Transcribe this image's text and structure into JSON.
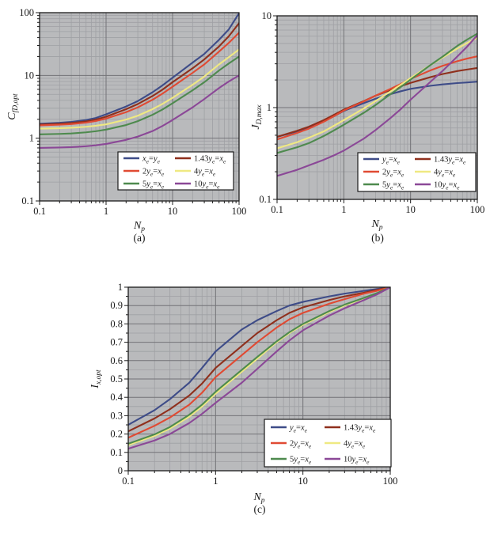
{
  "figure": {
    "background": "#ffffff",
    "plot_background": "#b9babc",
    "grid_major_color": "#737377",
    "grid_minor_color": "#9fa0a4",
    "frame_color": "#1c1c1c",
    "text_color": "#1a1a1a"
  },
  "chart_data": [
    {
      "id": "a",
      "type": "line",
      "caption": "(a)",
      "xlabel": {
        "base": "N",
        "sub": "p"
      },
      "ylabel": {
        "base": "C",
        "sub": "fD,opt"
      },
      "xscale": "log",
      "yscale": "log",
      "xlim": [
        0.1,
        100
      ],
      "ylim": [
        0.1,
        100
      ],
      "xtick_values": [
        0.1,
        1,
        10,
        100
      ],
      "xtick_labels": [
        "0.1",
        "1",
        "10",
        "100"
      ],
      "ytick_values": [
        0.1,
        1,
        10,
        100
      ],
      "ytick_labels": [
        "0.1",
        "1",
        "10",
        "100"
      ],
      "grid": true,
      "legend_position": "lower right",
      "x": [
        0.1,
        0.2,
        0.3,
        0.5,
        0.7,
        1,
        2,
        3,
        5,
        7,
        10,
        20,
        30,
        50,
        70,
        100
      ],
      "series": [
        {
          "name": "x_e=y_e",
          "color": "#3e4c88",
          "values": [
            1.7,
            1.76,
            1.82,
            1.95,
            2.1,
            2.4,
            3.2,
            3.9,
            5.4,
            6.9,
            9.2,
            16.0,
            22.0,
            37.0,
            54.0,
            98.0
          ]
        },
        {
          "name": "1.43y_e=x_e",
          "color": "#8f301d",
          "values": [
            1.65,
            1.7,
            1.75,
            1.85,
            1.98,
            2.2,
            2.9,
            3.5,
            4.7,
            5.9,
            7.8,
            13.0,
            18.0,
            29.0,
            42.0,
            68.0
          ]
        },
        {
          "name": "2y_e=x_e",
          "color": "#e04a33",
          "values": [
            1.6,
            1.64,
            1.68,
            1.77,
            1.88,
            2.05,
            2.6,
            3.1,
            4.1,
            5.1,
            6.6,
            11.0,
            15.0,
            24.0,
            33.0,
            48.0
          ]
        },
        {
          "name": "4y_e=x_e",
          "color": "#efe982",
          "values": [
            1.42,
            1.44,
            1.47,
            1.52,
            1.58,
            1.66,
            1.98,
            2.28,
            2.9,
            3.5,
            4.4,
            7.1,
            9.6,
            15.0,
            19.5,
            26.0
          ]
        },
        {
          "name": "5y_e=x_e",
          "color": "#4e8a4e",
          "values": [
            1.15,
            1.17,
            1.19,
            1.24,
            1.29,
            1.37,
            1.62,
            1.87,
            2.36,
            2.85,
            3.6,
            5.8,
            7.8,
            12.0,
            15.5,
            20.0
          ]
        },
        {
          "name": "10y_e=x_e",
          "color": "#8b4897",
          "values": [
            0.7,
            0.71,
            0.72,
            0.745,
            0.77,
            0.81,
            0.94,
            1.06,
            1.3,
            1.56,
            1.95,
            3.1,
            4.2,
            6.3,
            8.0,
            10.0
          ]
        }
      ]
    },
    {
      "id": "b",
      "type": "line",
      "caption": "(b)",
      "xlabel": {
        "base": "N",
        "sub": "p"
      },
      "ylabel": {
        "base": "J",
        "sub": "D,max"
      },
      "xscale": "log",
      "yscale": "log",
      "xlim": [
        0.1,
        100
      ],
      "ylim": [
        0.1,
        10
      ],
      "xtick_values": [
        0.1,
        1,
        10,
        100
      ],
      "xtick_labels": [
        "0.1",
        "1",
        "10",
        "100"
      ],
      "ytick_values": [
        0.1,
        1,
        10
      ],
      "ytick_labels": [
        "0.1",
        "1",
        "10"
      ],
      "grid": true,
      "legend_position": "lower right",
      "x": [
        0.1,
        0.2,
        0.3,
        0.5,
        0.7,
        1,
        2,
        3,
        5,
        7,
        10,
        20,
        30,
        50,
        70,
        100
      ],
      "series": [
        {
          "name": "y_e=x_e",
          "color": "#3e4c88",
          "values": [
            0.48,
            0.55,
            0.61,
            0.71,
            0.8,
            0.92,
            1.12,
            1.25,
            1.4,
            1.5,
            1.6,
            1.73,
            1.79,
            1.85,
            1.88,
            1.92
          ]
        },
        {
          "name": "1.43y_e=x_e",
          "color": "#8f301d",
          "values": [
            0.48,
            0.56,
            0.62,
            0.73,
            0.83,
            0.95,
            1.18,
            1.35,
            1.55,
            1.7,
            1.86,
            2.15,
            2.32,
            2.5,
            2.6,
            2.7
          ]
        },
        {
          "name": "2y_e=x_e",
          "color": "#e04a33",
          "values": [
            0.45,
            0.53,
            0.59,
            0.7,
            0.8,
            0.93,
            1.17,
            1.35,
            1.6,
            1.8,
            2.05,
            2.55,
            2.85,
            3.2,
            3.42,
            3.62
          ]
        },
        {
          "name": "4y_e=x_e",
          "color": "#efe982",
          "values": [
            0.36,
            0.42,
            0.47,
            0.55,
            0.63,
            0.73,
            0.98,
            1.18,
            1.5,
            1.76,
            2.1,
            2.92,
            3.5,
            4.4,
            5.05,
            5.75
          ]
        },
        {
          "name": "5y_e=x_e",
          "color": "#4e8a4e",
          "values": [
            0.32,
            0.37,
            0.41,
            0.49,
            0.56,
            0.65,
            0.88,
            1.07,
            1.4,
            1.66,
            2.02,
            2.92,
            3.58,
            4.7,
            5.5,
            6.4
          ]
        },
        {
          "name": "10y_e=x_e",
          "color": "#8b4897",
          "values": [
            0.18,
            0.21,
            0.235,
            0.27,
            0.3,
            0.34,
            0.46,
            0.57,
            0.77,
            0.95,
            1.22,
            1.92,
            2.5,
            3.6,
            4.6,
            6.15
          ]
        }
      ]
    },
    {
      "id": "c",
      "type": "line",
      "caption": "(c)",
      "xlabel": {
        "base": "N",
        "sub": "p"
      },
      "ylabel": {
        "base": "I",
        "sub": "x,opt"
      },
      "xscale": "log",
      "yscale": "linear",
      "xlim": [
        0.1,
        100
      ],
      "ylim": [
        0,
        1
      ],
      "xtick_values": [
        0.1,
        1,
        10,
        100
      ],
      "xtick_labels": [
        "0.1",
        "1",
        "10",
        "100"
      ],
      "ytick_values": [
        0,
        0.1,
        0.2,
        0.3,
        0.4,
        0.5,
        0.6,
        0.7,
        0.8,
        0.9,
        1
      ],
      "ytick_labels": [
        "0",
        "0.1",
        "0.2",
        "0.3",
        "0.4",
        "0.5",
        "0.6",
        "0.7",
        "0.8",
        "0.9",
        "1"
      ],
      "grid": true,
      "legend_position": "lower right",
      "x": [
        0.1,
        0.2,
        0.3,
        0.5,
        0.7,
        1,
        2,
        3,
        5,
        7,
        10,
        20,
        30,
        50,
        70,
        100
      ],
      "series": [
        {
          "name": "y_e=x_e",
          "color": "#3e4c88",
          "values": [
            0.25,
            0.33,
            0.39,
            0.48,
            0.56,
            0.65,
            0.77,
            0.82,
            0.87,
            0.9,
            0.92,
            0.95,
            0.965,
            0.98,
            0.99,
            1.0
          ]
        },
        {
          "name": "1.43y_e=x_e",
          "color": "#8f301d",
          "values": [
            0.215,
            0.285,
            0.335,
            0.41,
            0.475,
            0.56,
            0.68,
            0.75,
            0.82,
            0.86,
            0.89,
            0.93,
            0.95,
            0.97,
            0.985,
            1.0
          ]
        },
        {
          "name": "2y_e=x_e",
          "color": "#e04a33",
          "values": [
            0.18,
            0.245,
            0.29,
            0.36,
            0.425,
            0.51,
            0.63,
            0.7,
            0.78,
            0.825,
            0.86,
            0.91,
            0.935,
            0.965,
            0.98,
            1.0
          ]
        },
        {
          "name": "4y_e=x_e",
          "color": "#efe982",
          "values": [
            0.14,
            0.19,
            0.23,
            0.295,
            0.35,
            0.42,
            0.54,
            0.61,
            0.7,
            0.75,
            0.795,
            0.865,
            0.9,
            0.94,
            0.965,
            1.0
          ]
        },
        {
          "name": "5y_e=x_e",
          "color": "#4e8a4e",
          "values": [
            0.147,
            0.198,
            0.238,
            0.305,
            0.36,
            0.43,
            0.55,
            0.62,
            0.705,
            0.755,
            0.8,
            0.87,
            0.905,
            0.942,
            0.967,
            1.0
          ]
        },
        {
          "name": "10y_e=x_e",
          "color": "#8b4897",
          "values": [
            0.12,
            0.165,
            0.2,
            0.26,
            0.31,
            0.37,
            0.48,
            0.555,
            0.65,
            0.71,
            0.765,
            0.845,
            0.885,
            0.93,
            0.96,
            1.0
          ]
        }
      ]
    }
  ]
}
